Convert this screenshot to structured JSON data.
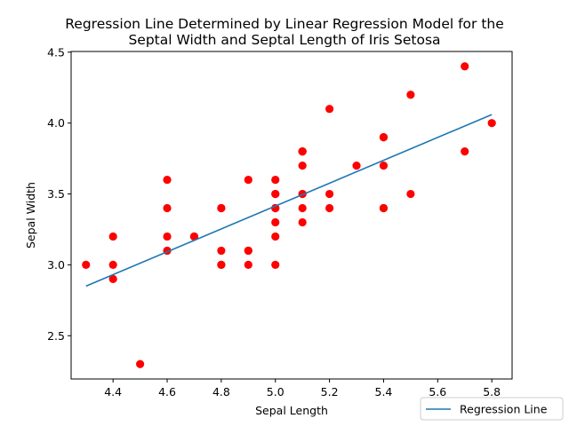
{
  "chart_data": {
    "type": "scatter",
    "title_lines": [
      "Regression Line Determined by Linear Regression Model for the",
      "Septal Width and Septal Length of Iris Setosa"
    ],
    "xlabel": "Sepal Length",
    "ylabel": "Sepal Width",
    "xlim": [
      4.245,
      5.875
    ],
    "ylim": [
      2.195,
      4.505
    ],
    "xticks": [
      4.4,
      4.6,
      4.8,
      5.0,
      5.2,
      5.4,
      5.6,
      5.8
    ],
    "xtick_labels": [
      "4.4",
      "4.6",
      "4.8",
      "5.0",
      "5.2",
      "5.4",
      "5.6",
      "5.8"
    ],
    "yticks": [
      2.5,
      3.0,
      3.5,
      4.0,
      4.5
    ],
    "ytick_labels": [
      "2.5",
      "3.0",
      "3.5",
      "4.0",
      "4.5"
    ],
    "grid": false,
    "legend_position": "lower-right-outside",
    "points": {
      "color": "#ff0000",
      "x": [
        5.1,
        4.9,
        4.7,
        4.6,
        5.0,
        5.4,
        4.6,
        5.0,
        4.4,
        4.9,
        5.4,
        4.8,
        4.8,
        4.3,
        5.8,
        5.7,
        5.4,
        5.1,
        5.7,
        5.1,
        5.4,
        5.1,
        4.6,
        5.1,
        4.8,
        5.0,
        5.0,
        5.2,
        5.2,
        4.7,
        4.8,
        5.4,
        5.2,
        5.5,
        4.9,
        5.0,
        5.5,
        4.9,
        4.4,
        5.1,
        5.0,
        4.5,
        4.4,
        5.0,
        5.1,
        4.8,
        5.1,
        4.6,
        5.3,
        5.0
      ],
      "y": [
        3.5,
        3.0,
        3.2,
        3.1,
        3.6,
        3.9,
        3.4,
        3.4,
        2.9,
        3.1,
        3.7,
        3.4,
        3.0,
        3.0,
        4.0,
        4.4,
        3.9,
        3.5,
        3.8,
        3.8,
        3.4,
        3.7,
        3.6,
        3.3,
        3.4,
        3.0,
        3.4,
        3.5,
        3.4,
        3.2,
        3.1,
        3.4,
        4.1,
        4.2,
        3.1,
        3.2,
        3.5,
        3.6,
        3.0,
        3.4,
        3.5,
        2.3,
        3.2,
        3.5,
        3.8,
        3.0,
        3.8,
        3.2,
        3.7,
        3.3
      ]
    },
    "series": [
      {
        "name": "Regression Line",
        "color": "#1f77b4",
        "x": [
          4.3,
          5.8
        ],
        "y": [
          2.85,
          4.06
        ]
      }
    ]
  }
}
